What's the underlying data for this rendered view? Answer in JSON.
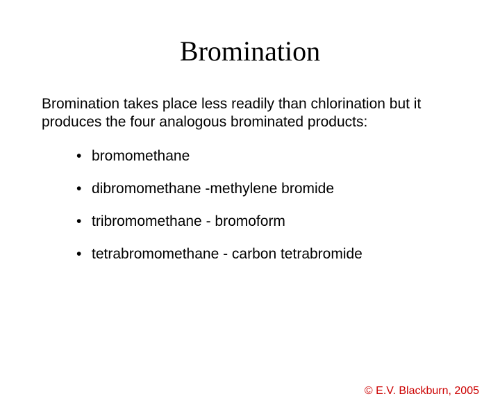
{
  "title": "Bromination",
  "intro": "Bromination takes place less readily than chlorination but it produces the four analogous brominated products:",
  "bullets": [
    "bromomethane",
    "dibromomethane -methylene bromide",
    "tribromomethane - bromoform",
    "tetrabromomethane - carbon tetrabromide"
  ],
  "footer": "© E.V. Blackburn, 2005",
  "colors": {
    "background": "#ffffff",
    "text": "#000000",
    "footer": "#cc0000"
  },
  "typography": {
    "title_fontsize": 40,
    "title_family": "Times New Roman",
    "body_fontsize": 21,
    "footer_fontsize": 16
  }
}
